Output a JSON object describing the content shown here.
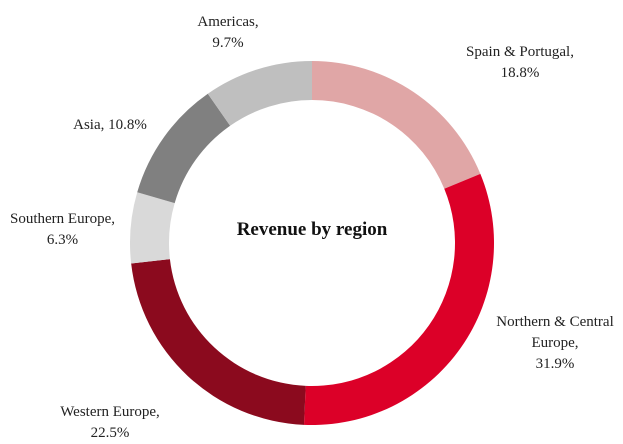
{
  "chart_data": {
    "type": "donut",
    "title": "Revenue by region",
    "categories": [
      "Spain & Portugal,",
      "Northern & Central Europe,",
      "Western Europe,",
      "Southern Europe,",
      "Asia,",
      "Americas,"
    ],
    "values": [
      18.8,
      31.9,
      22.5,
      6.3,
      10.8,
      9.7
    ],
    "value_labels": [
      "18.8%",
      "31.9%",
      "22.5%",
      "6.3%",
      "10.8%",
      "9.7%"
    ],
    "colors": [
      "#e0a6a6",
      "#dc0028",
      "#8b0a1e",
      "#d9d9d9",
      "#808080",
      "#bfbfbf"
    ]
  }
}
